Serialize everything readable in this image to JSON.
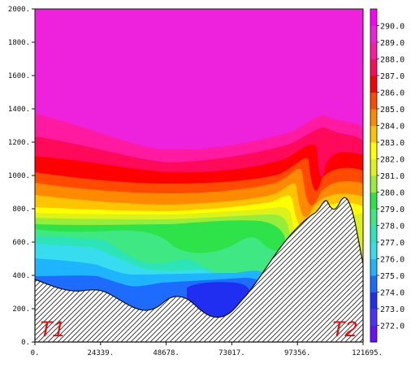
{
  "chart_data": {
    "type": "heatmap",
    "title": "",
    "xlabel": "",
    "ylabel": "",
    "xlim": [
      0,
      121695
    ],
    "ylim": [
      0,
      2000
    ],
    "x_ticks": [
      "0.",
      "24339.",
      "48678.",
      "73017.",
      "97356.",
      "121695."
    ],
    "y_ticks": [
      "0.",
      "200.",
      "400.",
      "600.",
      "800.",
      "1000.",
      "1200.",
      "1400.",
      "1600.",
      "1800.",
      "2000."
    ],
    "colorbar": {
      "levels": [
        "272.0",
        "273.0",
        "274.0",
        "275.0",
        "276.0",
        "277.0",
        "278.0",
        "279.0",
        "280.0",
        "281.0",
        "282.0",
        "283.0",
        "284.0",
        "285.0",
        "286.0",
        "287.0",
        "288.0",
        "289.0",
        "290.0"
      ],
      "colors": [
        "#6a0dff",
        "#4b32ff",
        "#1f2ef0",
        "#1e6cff",
        "#1fb4ff",
        "#37ddee",
        "#2de3b8",
        "#3fe882",
        "#2ee24a",
        "#97ee3a",
        "#dcf21a",
        "#ffff00",
        "#ffc400",
        "#ff8a00",
        "#ff4a00",
        "#ff0000",
        "#ff0a5a",
        "#ff1aa0",
        "#ee22dd",
        "#ff00ff"
      ]
    },
    "terrain_fill": "hatched",
    "annotations": [
      {
        "text": "T1",
        "color": "#e01010"
      },
      {
        "text": "T2",
        "color": "#e01010"
      }
    ]
  }
}
